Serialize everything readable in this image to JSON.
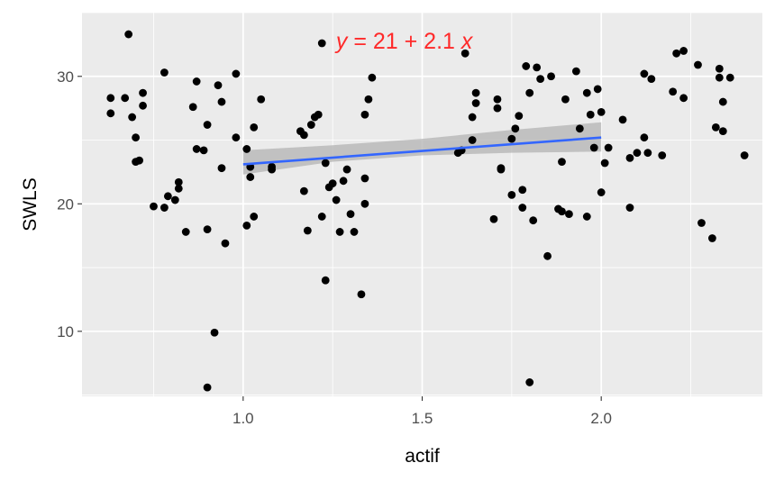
{
  "chart_data": {
    "type": "scatter",
    "title": "",
    "xlabel": "actif",
    "ylabel": "SWLS",
    "xlim": [
      0.55,
      2.45
    ],
    "ylim": [
      4.9,
      35
    ],
    "x_ticks": [
      1.0,
      1.5,
      2.0
    ],
    "x_tick_labels": [
      "1.0",
      "1.5",
      "2.0"
    ],
    "y_ticks": [
      10,
      20,
      30
    ],
    "y_tick_labels": [
      "10",
      "20",
      "30"
    ],
    "grid": true,
    "background": "#ebebeb",
    "colors": {
      "points": "#000000",
      "fit_line": "#3366ff",
      "confidence_band": "#b3b3b3",
      "annotation": "#ff2a2a"
    },
    "annotation": {
      "text_y": "y",
      "text_rest": " = 21 + 2.1 ",
      "text_x": "x",
      "x": 1.45,
      "y": 32.8
    },
    "fit": {
      "intercept": 21,
      "slope": 2.1,
      "x_range": [
        1.0,
        2.0
      ],
      "band": [
        {
          "x": 1.0,
          "lo": 22.3,
          "hi": 24.2
        },
        {
          "x": 1.25,
          "lo": 23.3,
          "hi": 24.6
        },
        {
          "x": 1.5,
          "lo": 23.8,
          "hi": 25.1
        },
        {
          "x": 1.75,
          "lo": 24.0,
          "hi": 25.8
        },
        {
          "x": 2.0,
          "lo": 24.1,
          "hi": 26.4
        }
      ]
    },
    "points": [
      [
        0.63,
        28.3
      ],
      [
        0.63,
        27.1
      ],
      [
        0.67,
        28.3
      ],
      [
        0.68,
        33.3
      ],
      [
        0.69,
        26.8
      ],
      [
        0.7,
        25.2
      ],
      [
        0.7,
        23.3
      ],
      [
        0.71,
        23.4
      ],
      [
        0.72,
        27.7
      ],
      [
        0.72,
        28.7
      ],
      [
        0.75,
        19.8
      ],
      [
        0.78,
        19.7
      ],
      [
        0.78,
        30.3
      ],
      [
        0.79,
        20.6
      ],
      [
        0.81,
        20.3
      ],
      [
        0.82,
        21.7
      ],
      [
        0.82,
        21.2
      ],
      [
        0.84,
        17.8
      ],
      [
        0.86,
        27.6
      ],
      [
        0.87,
        29.6
      ],
      [
        0.87,
        24.3
      ],
      [
        0.89,
        24.2
      ],
      [
        0.9,
        18.0
      ],
      [
        0.9,
        5.6
      ],
      [
        0.9,
        26.2
      ],
      [
        0.92,
        9.9
      ],
      [
        0.93,
        29.3
      ],
      [
        0.94,
        28.0
      ],
      [
        0.94,
        22.8
      ],
      [
        0.95,
        16.9
      ],
      [
        0.98,
        30.2
      ],
      [
        0.98,
        25.2
      ],
      [
        1.01,
        18.3
      ],
      [
        1.01,
        24.3
      ],
      [
        1.02,
        22.1
      ],
      [
        1.02,
        22.9
      ],
      [
        1.03,
        19.0
      ],
      [
        1.03,
        26.0
      ],
      [
        1.05,
        28.2
      ],
      [
        1.08,
        22.9
      ],
      [
        1.08,
        22.7
      ],
      [
        1.16,
        25.7
      ],
      [
        1.17,
        21.0
      ],
      [
        1.17,
        25.4
      ],
      [
        1.18,
        17.9
      ],
      [
        1.19,
        26.2
      ],
      [
        1.2,
        26.8
      ],
      [
        1.21,
        27.0
      ],
      [
        1.22,
        19.0
      ],
      [
        1.22,
        32.6
      ],
      [
        1.23,
        23.2
      ],
      [
        1.23,
        14.0
      ],
      [
        1.24,
        21.3
      ],
      [
        1.25,
        21.6
      ],
      [
        1.26,
        20.3
      ],
      [
        1.27,
        17.8
      ],
      [
        1.28,
        21.8
      ],
      [
        1.29,
        22.7
      ],
      [
        1.3,
        19.2
      ],
      [
        1.31,
        17.8
      ],
      [
        1.33,
        12.9
      ],
      [
        1.34,
        22.0
      ],
      [
        1.34,
        27.0
      ],
      [
        1.34,
        20.0
      ],
      [
        1.35,
        28.2
      ],
      [
        1.36,
        29.9
      ],
      [
        1.6,
        24.0
      ],
      [
        1.61,
        24.2
      ],
      [
        1.62,
        31.8
      ],
      [
        1.64,
        25.0
      ],
      [
        1.64,
        26.8
      ],
      [
        1.65,
        28.7
      ],
      [
        1.65,
        27.9
      ],
      [
        1.7,
        18.8
      ],
      [
        1.71,
        28.2
      ],
      [
        1.71,
        27.5
      ],
      [
        1.72,
        22.8
      ],
      [
        1.72,
        22.7
      ],
      [
        1.75,
        20.7
      ],
      [
        1.75,
        25.1
      ],
      [
        1.76,
        25.9
      ],
      [
        1.77,
        26.9
      ],
      [
        1.78,
        19.7
      ],
      [
        1.78,
        21.1
      ],
      [
        1.79,
        30.8
      ],
      [
        1.8,
        28.7
      ],
      [
        1.8,
        6.0
      ],
      [
        1.81,
        18.7
      ],
      [
        1.82,
        30.7
      ],
      [
        1.83,
        29.8
      ],
      [
        1.85,
        15.9
      ],
      [
        1.86,
        30.0
      ],
      [
        1.88,
        19.6
      ],
      [
        1.89,
        23.3
      ],
      [
        1.89,
        19.4
      ],
      [
        1.9,
        28.2
      ],
      [
        1.91,
        19.2
      ],
      [
        1.93,
        30.4
      ],
      [
        1.94,
        25.9
      ],
      [
        1.96,
        19.0
      ],
      [
        1.96,
        28.7
      ],
      [
        1.97,
        27.0
      ],
      [
        1.98,
        24.4
      ],
      [
        1.99,
        29.0
      ],
      [
        2.0,
        20.9
      ],
      [
        2.0,
        27.2
      ],
      [
        2.01,
        23.2
      ],
      [
        2.02,
        24.4
      ],
      [
        2.06,
        26.6
      ],
      [
        2.08,
        19.7
      ],
      [
        2.08,
        23.6
      ],
      [
        2.1,
        24.0
      ],
      [
        2.12,
        30.2
      ],
      [
        2.12,
        25.2
      ],
      [
        2.13,
        24.0
      ],
      [
        2.14,
        29.8
      ],
      [
        2.17,
        23.8
      ],
      [
        2.2,
        28.8
      ],
      [
        2.21,
        31.8
      ],
      [
        2.23,
        28.3
      ],
      [
        2.23,
        32.0
      ],
      [
        2.27,
        30.9
      ],
      [
        2.28,
        18.5
      ],
      [
        2.31,
        17.3
      ],
      [
        2.32,
        26.0
      ],
      [
        2.33,
        30.6
      ],
      [
        2.33,
        29.9
      ],
      [
        2.34,
        28.0
      ],
      [
        2.34,
        25.7
      ],
      [
        2.36,
        29.9
      ],
      [
        2.4,
        23.8
      ]
    ]
  }
}
